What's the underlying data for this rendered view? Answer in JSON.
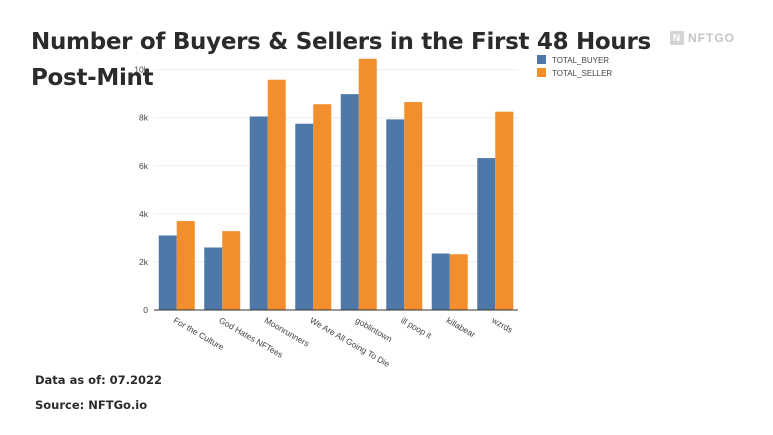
{
  "title": "Number of Buyers & Sellers in the First 48 Hours Post-Mint",
  "brand": {
    "name": "NFTGO",
    "mark": "N"
  },
  "notes": {
    "data_as_of": "Data as of: 07.2022",
    "source": "Source: NFTGo.io"
  },
  "chart_data": {
    "type": "bar",
    "categories": [
      "For the Culture",
      "God Hates NFTees",
      "Moonrunners",
      "We Are All Going To Die",
      "goblintown",
      "ill poop it",
      "killabear",
      "wzrds"
    ],
    "series": [
      {
        "name": "TOTAL_BUYER",
        "color": "#4e78a8",
        "values": [
          3100,
          2600,
          8050,
          7750,
          8980,
          7930,
          2350,
          6320
        ]
      },
      {
        "name": "TOTAL_SELLER",
        "color": "#f28e2b",
        "values": [
          3700,
          3280,
          9580,
          8560,
          10450,
          8650,
          2320,
          8250
        ]
      }
    ],
    "ylim": [
      0,
      10400
    ],
    "yticks": [
      0,
      2000,
      4000,
      6000,
      8000,
      10000
    ],
    "ytick_labels": [
      "0",
      "2k",
      "4k",
      "6k",
      "8k",
      "10k"
    ],
    "grid": true,
    "legend": "top-right"
  }
}
